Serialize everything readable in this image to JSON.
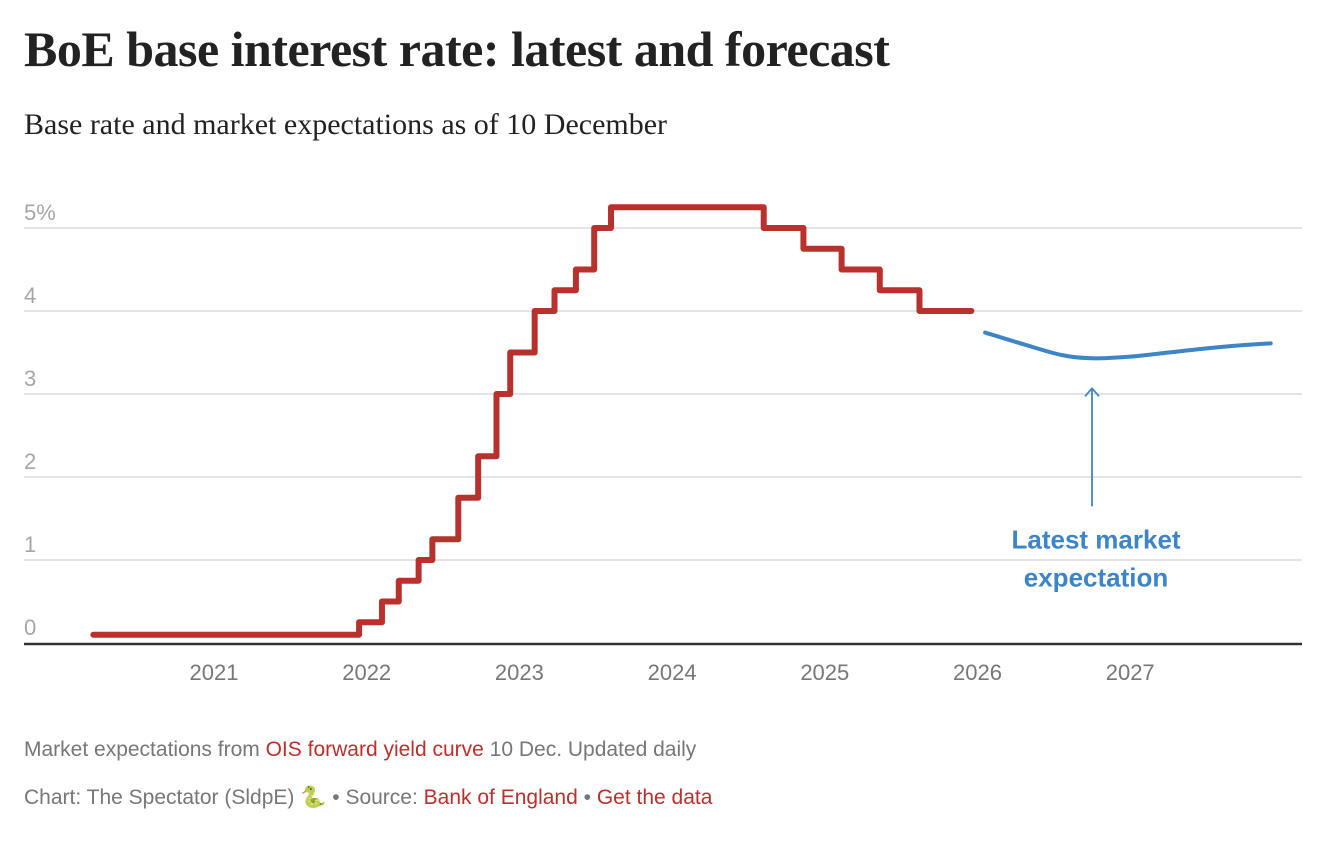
{
  "header": {
    "title": "BoE base interest rate: latest and forecast",
    "subtitle": "Base rate and market expectations as of 10 December"
  },
  "colors": {
    "base_rate": "#b8312c",
    "expectation": "#3d85c6",
    "grid": "#e4e4e4",
    "axis": "#333333",
    "link": "#b8312c",
    "muted_text": "#777777"
  },
  "chart_data": {
    "type": "line",
    "title": "BoE base interest rate: latest and forecast",
    "subtitle": "Base rate and market expectations as of 10 December",
    "xlabel": "",
    "ylabel": "",
    "x_unit": "year (decimal)",
    "xlim": [
      2020.0,
      2028.0
    ],
    "ylim": [
      0,
      5
    ],
    "y_ticks": [
      0,
      1,
      2,
      3,
      4,
      5
    ],
    "y_tick_labels": [
      "0",
      "1",
      "2",
      "3",
      "4",
      "5%"
    ],
    "x_ticks": [
      2021,
      2022,
      2023,
      2024,
      2025,
      2026,
      2027
    ],
    "x_tick_labels": [
      "2021",
      "2022",
      "2023",
      "2024",
      "2025",
      "2026",
      "2027"
    ],
    "grid": true,
    "legend": "none",
    "series": [
      {
        "name": "Base rate",
        "style": "step",
        "x": [
          2020.21,
          2021.95,
          2022.1,
          2022.21,
          2022.34,
          2022.43,
          2022.6,
          2022.73,
          2022.85,
          2022.94,
          2023.1,
          2023.23,
          2023.37,
          2023.49,
          2023.6,
          2024.6,
          2024.86,
          2025.11,
          2025.36,
          2025.62,
          2025.96
        ],
        "values": [
          0.1,
          0.25,
          0.5,
          0.75,
          1.0,
          1.25,
          1.75,
          2.25,
          3.0,
          3.5,
          4.0,
          4.25,
          4.5,
          5.0,
          5.25,
          5.0,
          4.75,
          4.5,
          4.25,
          4.0,
          4.0
        ]
      },
      {
        "name": "Latest market expectation",
        "style": "smooth",
        "x": [
          2026.05,
          2026.3,
          2026.55,
          2026.75,
          2027.0,
          2027.25,
          2027.5,
          2027.75,
          2027.92
        ],
        "values": [
          3.74,
          3.6,
          3.47,
          3.43,
          3.45,
          3.5,
          3.55,
          3.59,
          3.61
        ]
      }
    ],
    "annotations": [
      {
        "text_line1": "Latest market",
        "text_line2": "expectation",
        "points_to": {
          "x": 2026.75,
          "y": 3.43
        }
      }
    ]
  },
  "footer": {
    "note_prefix": "Market expectations from ",
    "note_link": "OIS forward yield curve",
    "note_suffix": " 10 Dec. Updated daily",
    "credit_prefix": "Chart: The Spectator (SldpE) ",
    "credit_emoji": "🐍",
    "separator": " • ",
    "source_label": "Source: ",
    "source_link": "Bank of England",
    "data_link": "Get the data"
  }
}
